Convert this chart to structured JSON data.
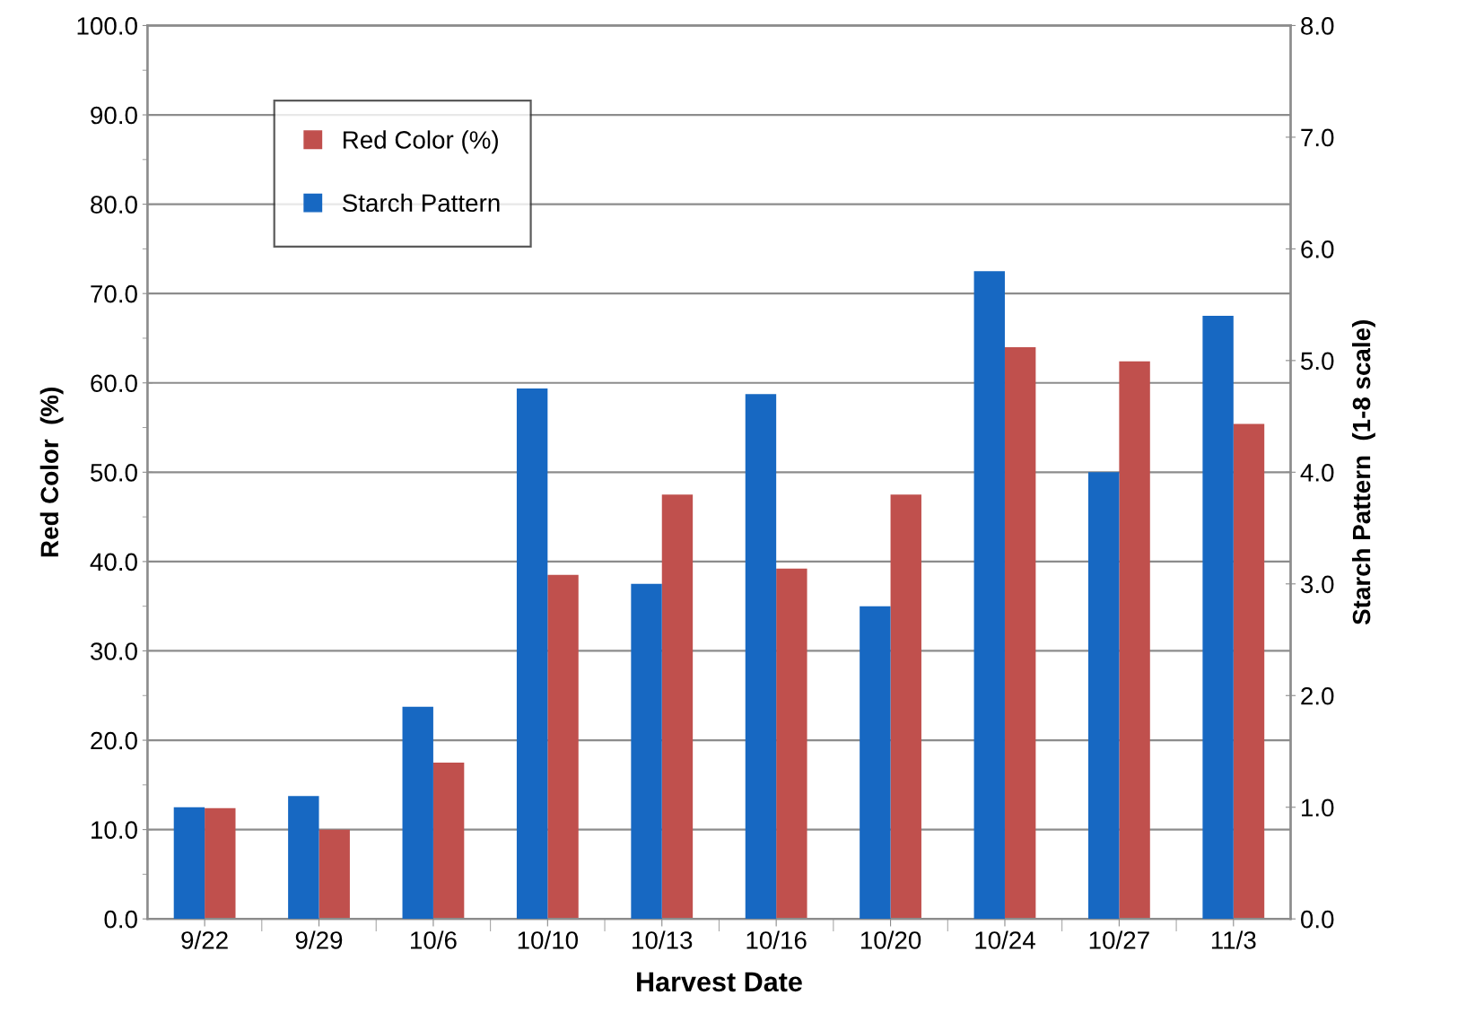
{
  "chart_data": {
    "type": "bar",
    "xlabel": "Harvest Date",
    "ylabel": "Red Color  (%)",
    "y2label": "Starch Pattern  (1-8 scale)",
    "categories": [
      "9/22",
      "9/29",
      "10/6",
      "10/10",
      "10/13",
      "10/16",
      "10/20",
      "10/24",
      "10/27",
      "11/3"
    ],
    "series": [
      {
        "name": "Starch Pattern",
        "color": "#1768c2",
        "axis": "y2",
        "values": [
          1.0,
          1.1,
          1.9,
          4.75,
          3.0,
          4.7,
          2.8,
          5.8,
          4.0,
          5.4
        ]
      },
      {
        "name": "Red Color (%)",
        "color": "#c0504d",
        "values": [
          12.4,
          10.0,
          17.5,
          38.5,
          47.5,
          39.2,
          47.5,
          64.0,
          62.4,
          55.4
        ]
      }
    ],
    "ylim": [
      0,
      100
    ],
    "yticks": [
      {
        "value": 0,
        "label": "0.0"
      },
      {
        "value": 10,
        "label": "10.0"
      },
      {
        "value": 20,
        "label": "20.0"
      },
      {
        "value": 30,
        "label": "30.0"
      },
      {
        "value": 40,
        "label": "40.0"
      },
      {
        "value": 50,
        "label": "50.0"
      },
      {
        "value": 60,
        "label": "60.0"
      },
      {
        "value": 70,
        "label": "70.0"
      },
      {
        "value": 80,
        "label": "80.0"
      },
      {
        "value": 90,
        "label": "90.0"
      },
      {
        "value": 100,
        "label": "100.0"
      }
    ],
    "y2lim": [
      0,
      8
    ],
    "y2ticks": [
      {
        "value": 0,
        "label": "0.0"
      },
      {
        "value": 1,
        "label": "1.0"
      },
      {
        "value": 2,
        "label": "2.0"
      },
      {
        "value": 3,
        "label": "3.0"
      },
      {
        "value": 4,
        "label": "4.0"
      },
      {
        "value": 5,
        "label": "5.0"
      },
      {
        "value": 6,
        "label": "6.0"
      },
      {
        "value": 7,
        "label": "7.0"
      },
      {
        "value": 8,
        "label": "8.0"
      }
    ],
    "grid": "y",
    "legend": "top left"
  }
}
